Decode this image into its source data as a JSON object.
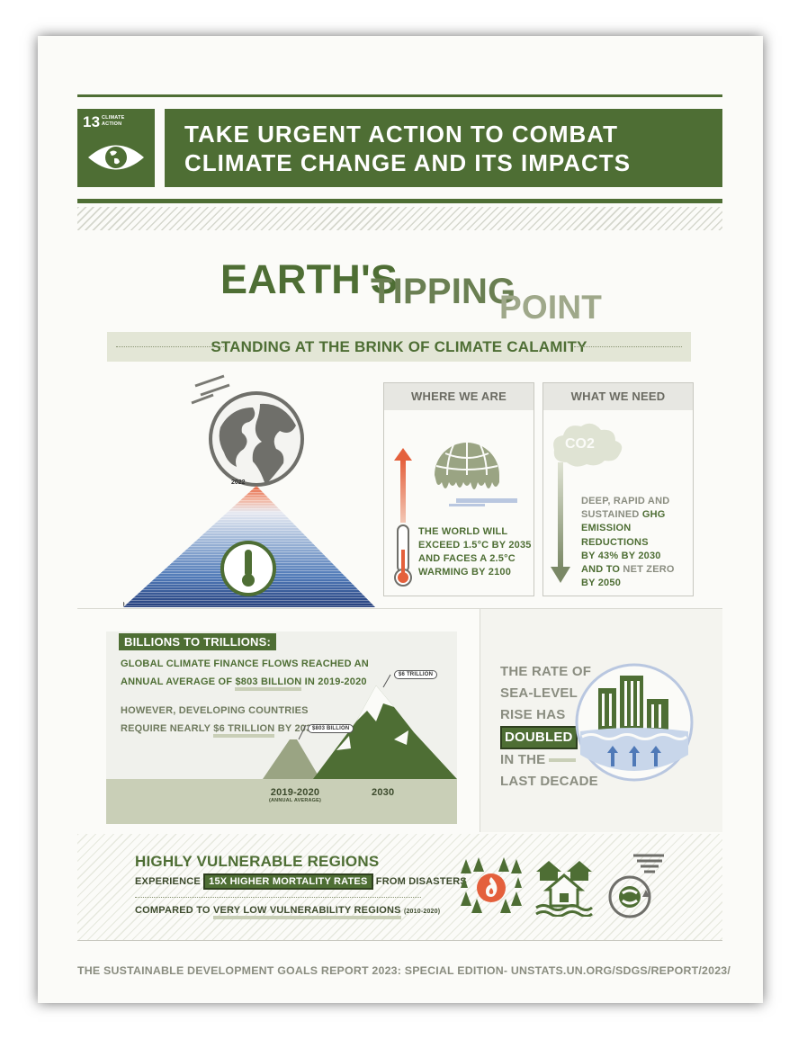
{
  "header": {
    "goal_number": "13",
    "goal_label_line1": "CLIMATE",
    "goal_label_line2": "ACTION",
    "title_line1": "TAKE URGENT ACTION TO COMBAT",
    "title_line2": "CLIMATE CHANGE AND ITS IMPACTS"
  },
  "hero": {
    "word1": "EARTH'S",
    "word2": "TIPPING",
    "word3": "POINT",
    "subtitle": "STANDING AT THE BRINK OF CLIMATE CALAMITY"
  },
  "pyramid": {
    "year_top": "2022",
    "year_bottom": "1850"
  },
  "where_we_are": {
    "heading": "WHERE WE ARE",
    "line1": "THE WORLD WILL",
    "line2": "EXCEED 1.5°C BY 2035",
    "line3": "AND FACES A 2.5°C",
    "line4": "WARMING BY 2100"
  },
  "what_we_need": {
    "heading": "WHAT WE NEED",
    "co2_label": "CO2",
    "line1": "DEEP, RAPID AND",
    "line2a": "SUSTAINED ",
    "line2b": "GHG",
    "line3": "EMISSION REDUCTIONS",
    "line4a": "BY 43% BY ",
    "line4b": "2030",
    "line5a": "AND TO ",
    "line5b": "NET ZERO",
    "line6": "BY 2050"
  },
  "finance": {
    "badge": "BILLIONS TO TRILLIONS:",
    "line1": "GLOBAL CLIMATE FINANCE FLOWS REACHED AN",
    "line2a": "ANNUAL AVERAGE OF ",
    "line2b": "$803 BILLION",
    "line2c": " IN 2019-2020",
    "line3": "HOWEVER, DEVELOPING COUNTRIES",
    "line4a": "REQUIRE NEARLY ",
    "line4b": "$6 TRILLION",
    "line4c": " BY 2030",
    "small_peak_label": "$803 BILLION",
    "big_peak_label": "$6 TRILLION",
    "year1": "2019-2020",
    "year1_note": "(ANNUAL AVERAGE)",
    "year2": "2030"
  },
  "sea_level": {
    "line1": "THE RATE OF",
    "line2": "SEA-LEVEL",
    "line3": "RISE HAS",
    "highlight": "DOUBLED",
    "line4": "IN THE",
    "line5": "LAST DECADE"
  },
  "vulnerable": {
    "heading": "HIGHLY VULNERABLE REGIONS",
    "line1a": "EXPERIENCE ",
    "line1b": "15X HIGHER MORTALITY RATES",
    "line1c": " FROM DISASTERS",
    "line2a": "COMPARED TO ",
    "line2b": "VERY LOW VULNERABILITY REGIONS",
    "line2c": "(2010-2020)"
  },
  "footer": {
    "text": "THE SUSTAINABLE DEVELOPMENT GOALS REPORT 2023: SPECIAL EDITION- UNSTATS.UN.ORG/SDGS/REPORT/2023/"
  },
  "colors": {
    "brand_green": "#4e6e34",
    "olive_light": "#c9cfb7",
    "muted_text": "#8a8d80"
  }
}
